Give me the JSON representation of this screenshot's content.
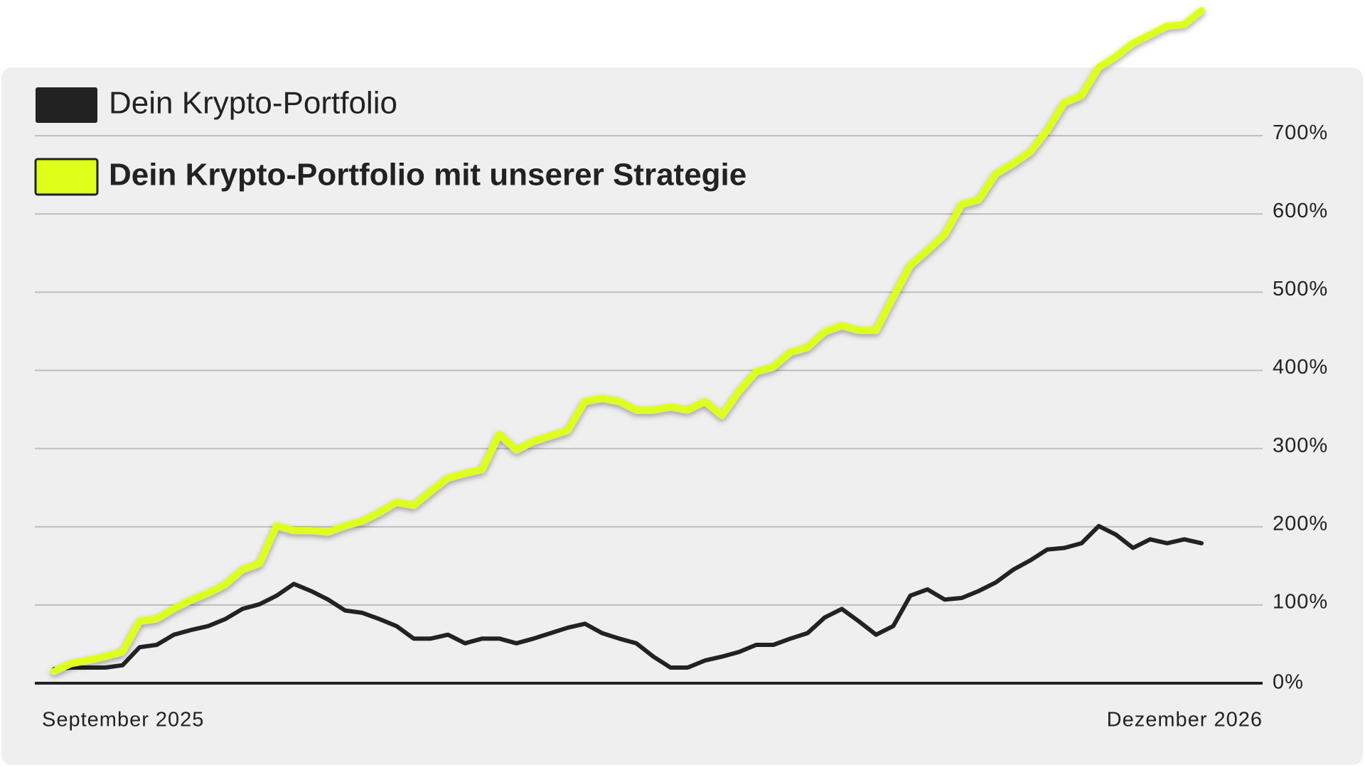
{
  "chart_data": {
    "type": "line",
    "categories": [
      "September 2025",
      null,
      null,
      null,
      null,
      null,
      null,
      null,
      null,
      null,
      null,
      null,
      null,
      null,
      null,
      null,
      null,
      null,
      null,
      null,
      null,
      null,
      null,
      null,
      null,
      null,
      null,
      null,
      null,
      null,
      null,
      null,
      null,
      null,
      null,
      null,
      null,
      null,
      null,
      null,
      null,
      null,
      null,
      null,
      null,
      null,
      null,
      null,
      null,
      null,
      null,
      null,
      null,
      null,
      null,
      null,
      null,
      null,
      null,
      null,
      null,
      null,
      null,
      null,
      null,
      null,
      null,
      "Dezember 2026"
    ],
    "series": [
      {
        "name": "Dein Krypto-Portfolio",
        "color": "#222222",
        "values": [
          18,
          20,
          20,
          20,
          23,
          46,
          49,
          62,
          68,
          73,
          82,
          95,
          101,
          112,
          127,
          118,
          107,
          93,
          90,
          82,
          73,
          57,
          57,
          62,
          51,
          57,
          57,
          51,
          57,
          64,
          71,
          76,
          64,
          57,
          51,
          34,
          20,
          20,
          29,
          34,
          40,
          49,
          49,
          57,
          64,
          84,
          95,
          79,
          62,
          73,
          112,
          120,
          107,
          109,
          118,
          129,
          145,
          157,
          171,
          173,
          179,
          201,
          190,
          173,
          184,
          179,
          184,
          179
        ]
      },
      {
        "name": "Dein Krypto-Portfolio mit unserer Strategie",
        "color": "#deff1a",
        "values": [
          15,
          25,
          29,
          34,
          40,
          79,
          82,
          95,
          106,
          115,
          126,
          145,
          153,
          201,
          195,
          195,
          193,
          201,
          207,
          218,
          231,
          227,
          245,
          262,
          268,
          273,
          318,
          298,
          309,
          316,
          323,
          360,
          364,
          360,
          349,
          349,
          353,
          349,
          360,
          342,
          373,
          398,
          404,
          423,
          429,
          449,
          457,
          451,
          451,
          493,
          534,
          553,
          573,
          612,
          618,
          651,
          664,
          679,
          707,
          742,
          751,
          787,
          801,
          818,
          829,
          840,
          842,
          860
        ]
      }
    ],
    "ylim": [
      0,
      860
    ],
    "yticks": [
      {
        "value": 0,
        "label": "0%"
      },
      {
        "value": 100,
        "label": "100%"
      },
      {
        "value": 200,
        "label": "200%"
      },
      {
        "value": 300,
        "label": "300%"
      },
      {
        "value": 400,
        "label": "400%"
      },
      {
        "value": 500,
        "label": "500%"
      },
      {
        "value": 600,
        "label": "600%"
      },
      {
        "value": 700,
        "label": "700%"
      }
    ],
    "grid": true,
    "legend": "top-left"
  }
}
